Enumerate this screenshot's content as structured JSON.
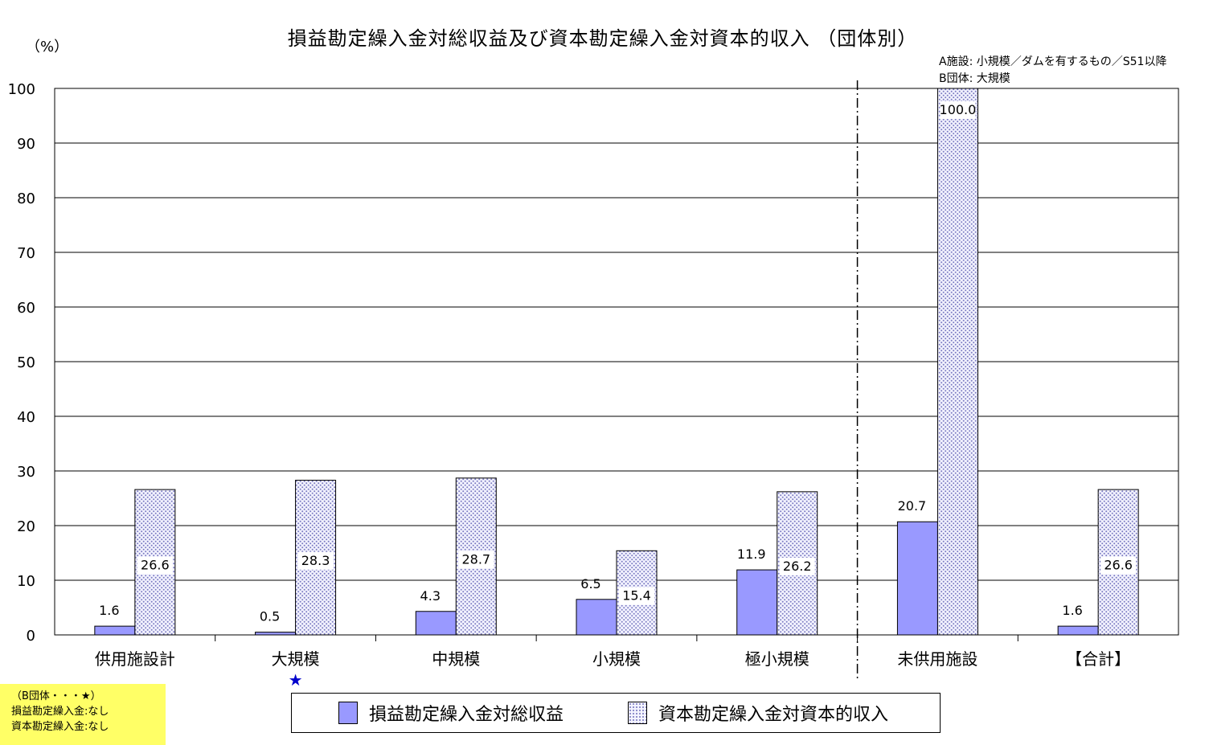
{
  "header": {
    "title": "損益勘定繰入金対総収益及び資本勘定繰入金対資本的収入 （団体別）",
    "unit": "（%）",
    "note_lines": [
      "A施設: 小規模／ダムを有するもの／S51以降",
      "B団体: 大規模"
    ]
  },
  "footnote": {
    "lines": [
      "（B団体・・・★）",
      "損益勘定繰入金:なし",
      "資本勘定繰入金:なし"
    ]
  },
  "chart_data": {
    "type": "bar",
    "title": "損益勘定繰入金対総収益及び資本勘定繰入金対資本的収入 （団体別）",
    "ylabel": "（%）",
    "ylim": [
      0,
      100
    ],
    "yticks": [
      0,
      10,
      20,
      30,
      40,
      50,
      60,
      70,
      80,
      90,
      100
    ],
    "grid": true,
    "categories": [
      "供用施設計",
      "大規模",
      "中規模",
      "小規模",
      "極小規模",
      "未供用施設",
      "【合計】"
    ],
    "series": [
      {
        "name": "損益勘定繰入金対総収益",
        "values": [
          1.6,
          0.5,
          4.3,
          6.5,
          11.9,
          20.7,
          1.6
        ],
        "labels": [
          "1.6",
          "0.5",
          "4.3",
          "6.5",
          "11.9",
          "20.7",
          "1.6"
        ],
        "color": "#9999ff"
      },
      {
        "name": "資本勘定繰入金対資本的収入",
        "values": [
          26.6,
          28.3,
          28.7,
          15.4,
          26.2,
          100.0,
          26.6
        ],
        "labels": [
          "26.6",
          "28.3",
          "28.7",
          "15.4",
          "26.2",
          "100.0",
          "26.6"
        ],
        "color": "#c8c8ee"
      }
    ],
    "markers": [
      {
        "category": "大規模",
        "symbol": "★",
        "color": "#0000cc"
      }
    ],
    "legend": "bottom"
  }
}
